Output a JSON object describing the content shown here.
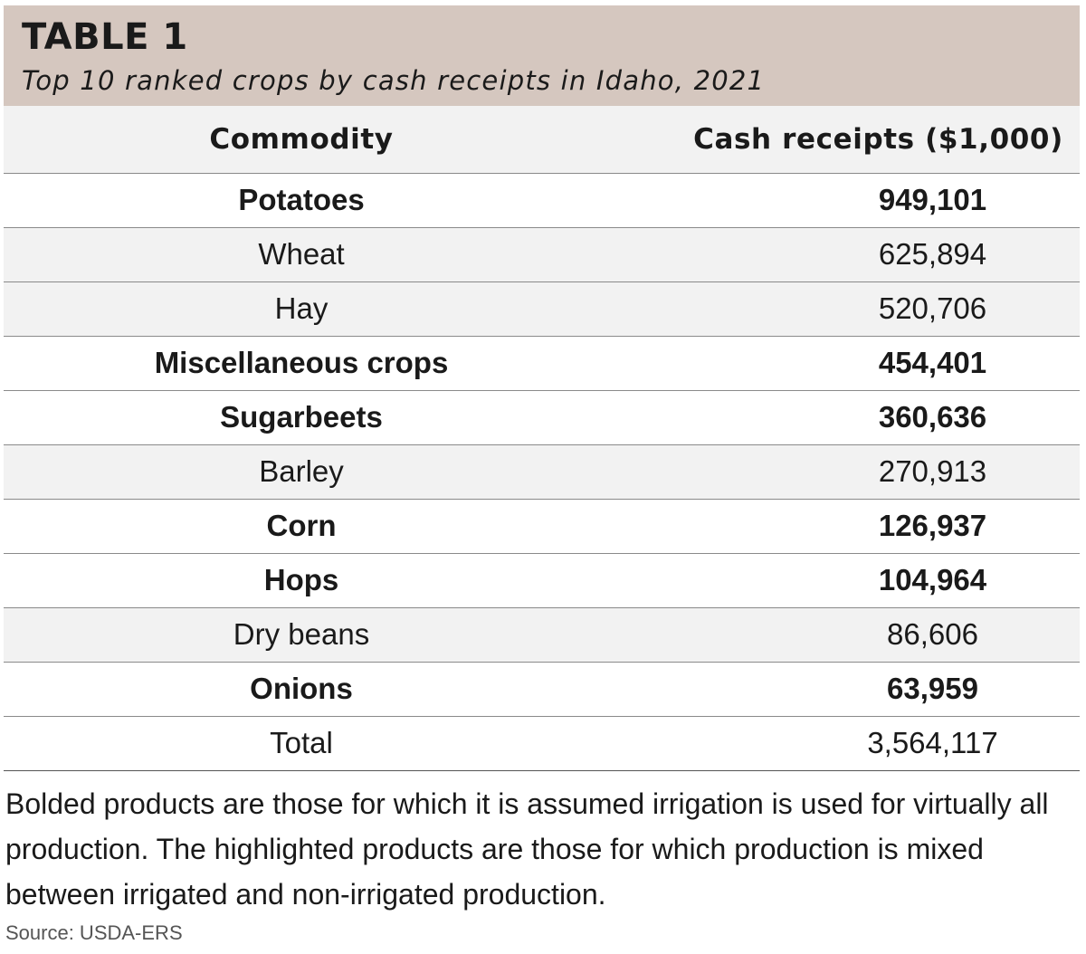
{
  "header": {
    "label": "TABLE 1",
    "caption": "Top 10 ranked crops by cash receipts in Idaho, 2021"
  },
  "columns": {
    "commodity": "Commodity",
    "receipts": "Cash receipts ($1,000)"
  },
  "rows": [
    {
      "commodity": "Potatoes",
      "receipts": "949,101",
      "bold": true,
      "highlighted": false
    },
    {
      "commodity": "Wheat",
      "receipts": "625,894",
      "bold": false,
      "highlighted": true
    },
    {
      "commodity": "Hay",
      "receipts": "520,706",
      "bold": false,
      "highlighted": true
    },
    {
      "commodity": "Miscellaneous crops",
      "receipts": "454,401",
      "bold": true,
      "highlighted": false
    },
    {
      "commodity": "Sugarbeets",
      "receipts": "360,636",
      "bold": true,
      "highlighted": false
    },
    {
      "commodity": "Barley",
      "receipts": "270,913",
      "bold": false,
      "highlighted": true
    },
    {
      "commodity": "Corn",
      "receipts": "126,937",
      "bold": true,
      "highlighted": false
    },
    {
      "commodity": "Hops",
      "receipts": "104,964",
      "bold": true,
      "highlighted": false
    },
    {
      "commodity": "Dry beans",
      "receipts": "86,606",
      "bold": false,
      "highlighted": true
    },
    {
      "commodity": "Onions",
      "receipts": "63,959",
      "bold": true,
      "highlighted": false
    },
    {
      "commodity": "Total",
      "receipts": "3,564,117",
      "bold": false,
      "highlighted": false
    }
  ],
  "note": "Bolded products are those for which it is assumed irrigation is used for virtually all production. The highlighted products are those for which production is mixed between irrigated and non-irrigated production.",
  "source": "Source: USDA-ERS",
  "colors": {
    "header_bg": "#d5c7bf",
    "row_highlight": "#f2f2f2",
    "text": "#1a1a1a",
    "rule": "#8a8a8a"
  }
}
